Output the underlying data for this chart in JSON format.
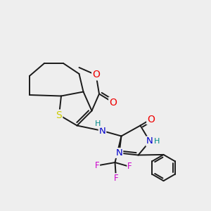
{
  "bg_color": "#eeeeee",
  "bond_color": "#1a1a1a",
  "bond_width": 1.4,
  "atom_colors": {
    "S": "#cccc00",
    "O": "#ee0000",
    "N": "#0000cc",
    "F": "#cc00cc",
    "H": "#008888",
    "C": "#1a1a1a"
  },
  "font_size": 8.5,
  "figsize": [
    3.0,
    3.0
  ],
  "dpi": 100,
  "xlim": [
    0,
    10
  ],
  "ylim": [
    0,
    10
  ]
}
